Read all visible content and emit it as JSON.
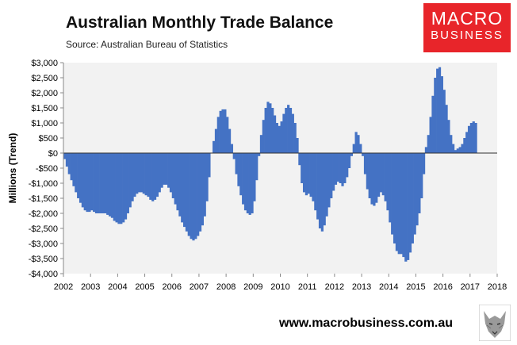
{
  "header": {
    "title": "Australian Monthly Trade Balance",
    "source": "Source: Australian Bureau of Statistics"
  },
  "logo": {
    "line1": "MACRO",
    "line2": "BUSINESS"
  },
  "footer": {
    "url": "www.macrobusiness.com.au"
  },
  "colors": {
    "bar": "#4472c4",
    "plot_bg": "#f2f2f2"
  },
  "chart_data": {
    "type": "bar",
    "title": "Australian Monthly Trade Balance",
    "xlabel": "",
    "ylabel": "Millions (Trend)",
    "ylim": [
      -4000,
      3000
    ],
    "yticks": [
      3000,
      2500,
      2000,
      1500,
      1000,
      500,
      0,
      -500,
      -1000,
      -1500,
      -2000,
      -2500,
      -3000,
      -3500,
      -4000
    ],
    "ytick_labels": [
      "$3,000",
      "$2,500",
      "$2,000",
      "$1,500",
      "$1,000",
      "$500",
      "$0",
      "-$500",
      "-$1,000",
      "-$1,500",
      "-$2,000",
      "-$2,500",
      "-$3,000",
      "-$3,500",
      "-$4,000"
    ],
    "xticks": [
      "2002",
      "2003",
      "2004",
      "2005",
      "2006",
      "2007",
      "2008",
      "2009",
      "2010",
      "2011",
      "2012",
      "2013",
      "2014",
      "2015",
      "2016",
      "2017",
      "2018"
    ],
    "grid": false,
    "legend": "none",
    "series": [
      {
        "frequency": "monthly",
        "values": [
          -200,
          -450,
          -700,
          -900,
          -1100,
          -1300,
          -1500,
          -1650,
          -1800,
          -1900,
          -1950,
          -1950,
          -1900,
          -1950,
          -2000,
          -2000,
          -2000,
          -2000,
          -2000,
          -2050,
          -2100,
          -2150,
          -2250,
          -2300,
          -2350,
          -2350,
          -2300,
          -2200,
          -2000,
          -1800,
          -1600,
          -1450,
          -1350,
          -1300,
          -1300,
          -1350,
          -1400,
          -1450,
          -1550,
          -1600,
          -1550,
          -1450,
          -1300,
          -1150,
          -1050,
          -1050,
          -1150,
          -1300,
          -1500,
          -1700,
          -1900,
          -2100,
          -2300,
          -2450,
          -2600,
          -2750,
          -2850,
          -2900,
          -2850,
          -2750,
          -2600,
          -2400,
          -2100,
          -1600,
          -800,
          0,
          400,
          800,
          1200,
          1400,
          1450,
          1450,
          1200,
          800,
          300,
          -200,
          -700,
          -1100,
          -1400,
          -1700,
          -1900,
          -2000,
          -2050,
          -2000,
          -1600,
          -900,
          -100,
          600,
          1100,
          1500,
          1700,
          1650,
          1500,
          1250,
          1000,
          900,
          1050,
          1300,
          1500,
          1600,
          1500,
          1300,
          1000,
          500,
          -400,
          -1000,
          -1300,
          -1400,
          -1350,
          -1450,
          -1600,
          -1900,
          -2200,
          -2500,
          -2600,
          -2400,
          -2100,
          -1800,
          -1500,
          -1250,
          -1050,
          -950,
          -1000,
          -1100,
          -1000,
          -800,
          -500,
          -100,
          300,
          700,
          600,
          300,
          -100,
          -700,
          -1200,
          -1500,
          -1700,
          -1750,
          -1650,
          -1450,
          -1300,
          -1400,
          -1600,
          -1900,
          -2300,
          -2700,
          -3000,
          -3250,
          -3350,
          -3350,
          -3450,
          -3600,
          -3550,
          -3300,
          -3000,
          -2700,
          -2400,
          -2000,
          -1500,
          -700,
          200,
          600,
          1200,
          1900,
          2500,
          2800,
          2850,
          2550,
          2100,
          1600,
          1100,
          600,
          300,
          100,
          150,
          200,
          300,
          500,
          700,
          900,
          1000,
          1050,
          1000
        ]
      }
    ]
  }
}
